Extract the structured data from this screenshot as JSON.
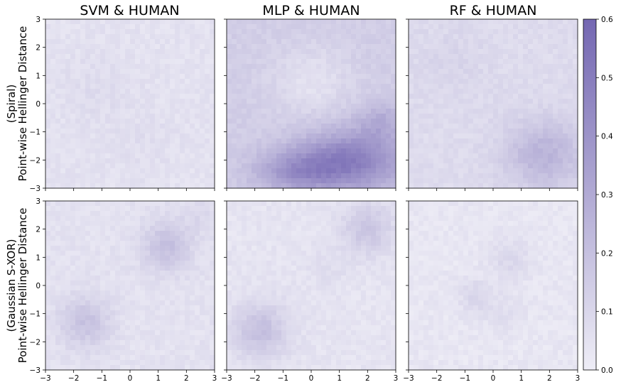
{
  "chart_data": {
    "type": "heatmap",
    "panel_titles": [
      "SVM & HUMAN",
      "MLP & HUMAN",
      "RF & HUMAN"
    ],
    "row_labels": [
      [
        "(Spiral)",
        "Point-wise Hellinger Distance"
      ],
      [
        "(Gaussian S-XOR)",
        "Point-wise Hellinger Distance"
      ]
    ],
    "x_ticks": [
      "−3",
      "−2",
      "−1",
      "0",
      "1",
      "2",
      "3"
    ],
    "y_ticks": [
      "3",
      "2",
      "1",
      "0",
      "−1",
      "−2",
      "−3"
    ],
    "xlim": [
      -3,
      3
    ],
    "ylim": [
      -3,
      3
    ],
    "colorbar": {
      "range": [
        0.0,
        0.6
      ],
      "ticks": [
        "0.0",
        "0.1",
        "0.2",
        "0.3",
        "0.4",
        "0.5",
        "0.6"
      ],
      "color_low": "#eeedf6",
      "color_high": "#7467b2"
    },
    "panels": [
      {
        "row": "Spiral",
        "model": "SVM",
        "background": 0.05,
        "regions": [
          {
            "x": -1.2,
            "y": 0.5,
            "sx": 1.2,
            "sy": 1.2,
            "v": 0.03
          },
          {
            "x": 0.5,
            "y": -1.3,
            "sx": 1.2,
            "sy": 1.0,
            "v": 0.02
          }
        ]
      },
      {
        "row": "Spiral",
        "model": "MLP",
        "background": 0.14,
        "regions": [
          {
            "x": 1.5,
            "y": -2.0,
            "sx": 1.8,
            "sy": 1.1,
            "v": 0.34
          },
          {
            "x": -0.5,
            "y": -2.4,
            "sx": 1.5,
            "sy": 0.8,
            "v": 0.24
          },
          {
            "x": 2.5,
            "y": -0.6,
            "sx": 0.8,
            "sy": 0.7,
            "v": 0.12
          },
          {
            "x": 0.0,
            "y": 0.8,
            "sx": 1.4,
            "sy": 1.2,
            "v": -0.09
          }
        ]
      },
      {
        "row": "Spiral",
        "model": "RF",
        "background": 0.08,
        "regions": [
          {
            "x": 1.8,
            "y": -1.8,
            "sx": 1.4,
            "sy": 1.2,
            "v": 0.18
          },
          {
            "x": -1.5,
            "y": 1.5,
            "sx": 1.2,
            "sy": 1.2,
            "v": 0.03
          }
        ]
      },
      {
        "row": "Gaussian S-XOR",
        "model": "SVM",
        "background": 0.05,
        "regions": [
          {
            "x": 1.3,
            "y": 1.4,
            "sx": 0.9,
            "sy": 0.9,
            "v": 0.15
          },
          {
            "x": -1.6,
            "y": -1.3,
            "sx": 0.9,
            "sy": 0.9,
            "v": 0.14
          },
          {
            "x": 2.5,
            "y": 2.5,
            "sx": 0.6,
            "sy": 0.6,
            "v": 0.04
          }
        ]
      },
      {
        "row": "Gaussian S-XOR",
        "model": "MLP",
        "background": 0.04,
        "regions": [
          {
            "x": 2.0,
            "y": 2.0,
            "sx": 0.9,
            "sy": 0.9,
            "v": 0.14
          },
          {
            "x": -1.8,
            "y": -1.6,
            "sx": 1.0,
            "sy": 1.0,
            "v": 0.16
          },
          {
            "x": 0.6,
            "y": 0.6,
            "sx": 0.7,
            "sy": 0.7,
            "v": 0.03
          }
        ]
      },
      {
        "row": "Gaussian S-XOR",
        "model": "RF",
        "background": 0.03,
        "regions": [
          {
            "x": 0.6,
            "y": 0.9,
            "sx": 0.7,
            "sy": 0.7,
            "v": 0.07
          },
          {
            "x": -0.6,
            "y": -0.4,
            "sx": 0.6,
            "sy": 0.6,
            "v": 0.08
          },
          {
            "x": 0.4,
            "y": -1.0,
            "sx": 0.6,
            "sy": 0.6,
            "v": 0.04
          }
        ]
      }
    ]
  }
}
